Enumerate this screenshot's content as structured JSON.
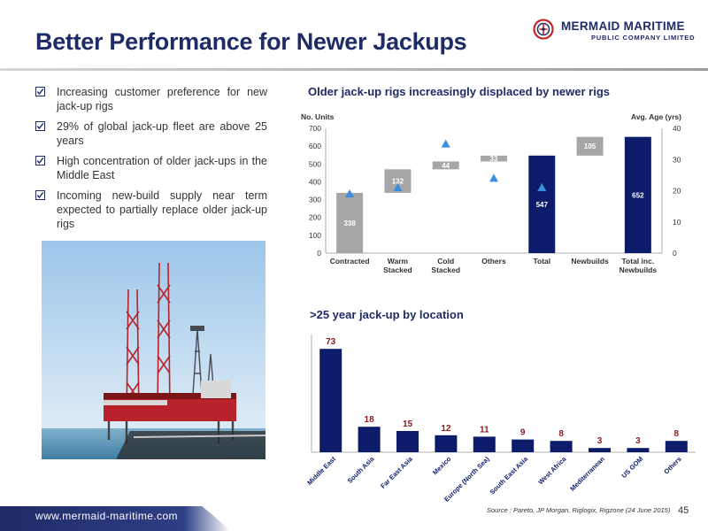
{
  "title": "Better Performance for Newer Jackups",
  "logo": {
    "line1": "MERMAID MARITIME",
    "line2": "PUBLIC COMPANY LIMITED"
  },
  "bullets": [
    "Increasing customer preference for new jack-up rigs",
    "29% of global jack-up fleet are above 25 years",
    "High concentration of older jack-ups in the Middle East",
    "Incoming new-build supply near term expected to partially replace older jack-up rigs"
  ],
  "colors": {
    "navy": "#0c1c6b",
    "gray": "#a6a6a6",
    "triangle": "#3b8fe0",
    "label_red": "#8b1a1a",
    "title": "#1f2b66"
  },
  "chart_data": [
    {
      "type": "bar",
      "subtype": "waterfall",
      "title": "Older jack-up rigs increasingly displaced by newer  rigs",
      "ylabel_left": "No. Units",
      "ylabel_right": "Avg. Age (yrs)",
      "categories": [
        "Contracted",
        "Warm Stacked",
        "Cold Stacked",
        "Others",
        "Total",
        "Newbuilds",
        "Total inc. Newbuilds"
      ],
      "values": [
        338,
        132,
        44,
        33,
        547,
        105,
        652
      ],
      "bar_base": [
        0,
        338,
        470,
        514,
        0,
        547,
        0
      ],
      "bar_kind": [
        "gray",
        "gray",
        "gray",
        "gray",
        "navy",
        "gray",
        "navy"
      ],
      "avg_age_series": {
        "categories": [
          "Contracted",
          "Warm Stacked",
          "Cold Stacked",
          "Others",
          "Total"
        ],
        "values": [
          19,
          21,
          35,
          24,
          21
        ]
      },
      "ylim_left": [
        0,
        700
      ],
      "yticks_left": [
        "0",
        "100",
        "200",
        "300",
        "400",
        "500",
        "600",
        "700"
      ],
      "ylim_right": [
        0,
        40
      ],
      "yticks_right": [
        "0",
        "10",
        "20",
        "30",
        "40"
      ]
    },
    {
      "type": "bar",
      "title": ">25 year jack-up by location",
      "categories": [
        "Middle East",
        "South Asia",
        "Far East Asia",
        "Mexico",
        "Europe (North Sea)",
        "South East Asia",
        "West Africa",
        "Mediterranean",
        "US GOM",
        "Others"
      ],
      "values": [
        73,
        18,
        15,
        12,
        11,
        9,
        8,
        3,
        3,
        8
      ],
      "ylim": [
        0,
        80
      ]
    }
  ],
  "source": "Source : Pareto, JP Morgan, Riglogix, Rigzone (24 June 2015)",
  "page_number": "45",
  "footer_url": "www.mermaid-maritime.com"
}
